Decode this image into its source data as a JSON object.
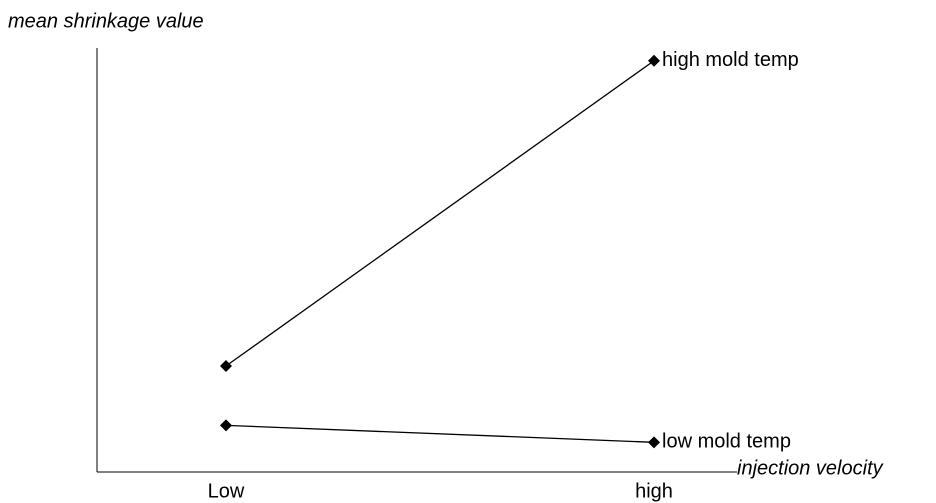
{
  "chart_data": {
    "type": "line",
    "y_label": "mean shrinkage value",
    "x_label": "injection velocity",
    "categories": [
      "Low",
      "high"
    ],
    "ylim": [
      0,
      100
    ],
    "series": [
      {
        "name": "high mold temp",
        "color": "#000000",
        "values": [
          25,
          97
        ]
      },
      {
        "name": "low mold temp",
        "color": "#000000",
        "values": [
          11,
          7
        ]
      }
    ]
  }
}
